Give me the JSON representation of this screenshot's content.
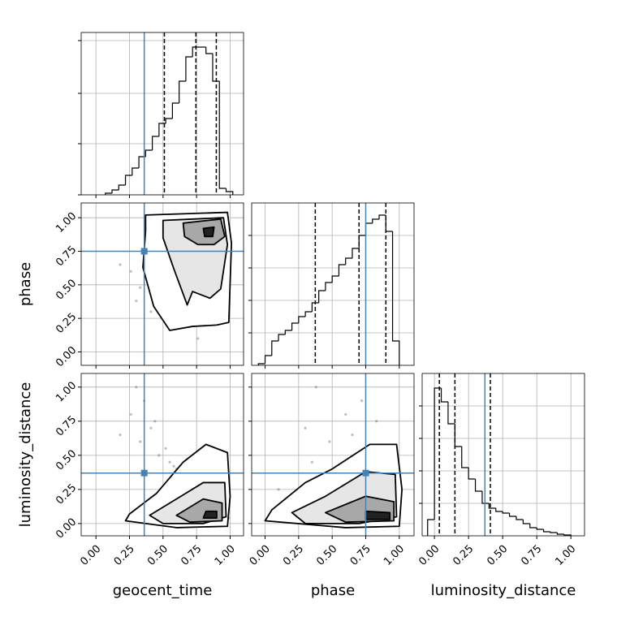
{
  "chart_data": {
    "type": "corner",
    "grid": true,
    "truth_color": "#4682b4",
    "contour_fills": [
      "#ffffff",
      "#e6e6e6",
      "#a8a8a8",
      "#222222"
    ],
    "parameters": [
      {
        "name": "geocent_time",
        "lim": [
          -0.11,
          1.1
        ],
        "ticks": [
          {
            "value": 0,
            "label": "0.00"
          },
          {
            "value": 0.25,
            "label": "0.25"
          },
          {
            "value": 0.5,
            "label": "0.50"
          },
          {
            "value": 0.75,
            "label": "0.75"
          },
          {
            "value": 1,
            "label": "1.00"
          }
        ],
        "truth": 0.36,
        "quantiles": [
          0.51,
          0.745,
          0.897
        ],
        "hist": {
          "bins": [
            0.07,
            0.12,
            0.17,
            0.22,
            0.27,
            0.32,
            0.37,
            0.42,
            0.47,
            0.52,
            0.57,
            0.62,
            0.67,
            0.72,
            0.77,
            0.82,
            0.87,
            0.92,
            0.97,
            1.02
          ],
          "counts": [
            2,
            6,
            12,
            24,
            33,
            47,
            55,
            72,
            88,
            94,
            113,
            140,
            170,
            182,
            182,
            174,
            140,
            8,
            4
          ],
          "ylim": [
            0,
            200
          ],
          "yticks": [
            0,
            63,
            125,
            190
          ]
        }
      },
      {
        "name": "phase",
        "lim": [
          -0.1,
          1.11
        ],
        "ticks": [
          {
            "value": 0,
            "label": "0.00"
          },
          {
            "value": 0.25,
            "label": "0.25"
          },
          {
            "value": 0.5,
            "label": "0.50"
          },
          {
            "value": 0.75,
            "label": "0.75"
          },
          {
            "value": 1,
            "label": "1.00"
          }
        ],
        "truth": 0.75,
        "quantiles": [
          0.374,
          0.7,
          0.9
        ],
        "hist": {
          "bins": [
            -0.05,
            0,
            0.05,
            0.1,
            0.15,
            0.2,
            0.25,
            0.3,
            0.35,
            0.4,
            0.45,
            0.5,
            0.55,
            0.6,
            0.65,
            0.7,
            0.75,
            0.8,
            0.85,
            0.9,
            0.95,
            1.0
          ],
          "counts": [
            2,
            12,
            30,
            38,
            43,
            52,
            60,
            66,
            77,
            92,
            102,
            110,
            124,
            132,
            144,
            160,
            175,
            180,
            185,
            165,
            30
          ],
          "ylim": [
            0,
            200
          ],
          "yticks": [
            40,
            80,
            120,
            160
          ]
        }
      },
      {
        "name": "luminosity_distance",
        "lim": [
          -0.09,
          1.1
        ],
        "ticks": [
          {
            "value": 0,
            "label": "0.00"
          },
          {
            "value": 0.25,
            "label": "0.25"
          },
          {
            "value": 0.5,
            "label": "0.50"
          },
          {
            "value": 0.75,
            "label": "0.75"
          },
          {
            "value": 1,
            "label": "1.00"
          }
        ],
        "truth": 0.37,
        "quantiles": [
          0.036,
          0.15,
          0.41
        ],
        "hist": {
          "bins": [
            -0.05,
            0,
            0.05,
            0.1,
            0.15,
            0.2,
            0.25,
            0.3,
            0.35,
            0.4,
            0.45,
            0.5,
            0.55,
            0.6,
            0.65,
            0.7,
            0.75,
            0.8,
            0.85,
            0.9,
            0.95,
            1.0
          ],
          "counts": [
            20,
            182,
            165,
            138,
            110,
            84,
            70,
            55,
            40,
            34,
            30,
            28,
            24,
            20,
            15,
            10,
            8,
            5,
            4,
            2,
            1
          ],
          "ylim": [
            0,
            200
          ],
          "yticks": [
            40,
            80,
            120,
            160
          ]
        }
      }
    ],
    "samples": {
      "geocent_time": [
        0.85,
        0.72,
        0.91,
        0.64,
        0.95,
        0.33,
        0.78,
        0.88,
        0.55,
        0.93,
        0.81,
        0.47,
        0.69,
        0.97,
        0.26,
        0.83,
        0.9,
        0.6,
        0.75,
        0.99,
        0.41,
        0.87,
        0.7,
        0.94,
        0.52,
        0.8,
        0.36,
        0.92,
        0.66,
        0.84,
        0.18,
        0.89,
        0.58,
        0.76,
        0.98,
        0.44,
        0.86,
        0.73,
        0.95,
        0.3
      ],
      "phase": [
        0.9,
        0.75,
        0.82,
        0.55,
        0.95,
        0.48,
        0.88,
        0.62,
        0.35,
        0.98,
        0.7,
        0.85,
        0.2,
        0.92,
        0.6,
        0.78,
        0.4,
        0.93,
        0.67,
        0.86,
        0.3,
        0.97,
        0.5,
        0.8,
        0.9,
        0.58,
        0.72,
        0.45,
        0.96,
        0.84,
        0.65,
        0.25,
        0.88,
        0.1,
        0.76,
        0.83,
        0.52,
        0.94,
        0.69,
        0.38
      ],
      "luminosity_distance": [
        0.05,
        0.2,
        0.1,
        0.35,
        0.03,
        0.6,
        0.12,
        0.08,
        0.45,
        0.06,
        0.28,
        0.5,
        0.15,
        0.02,
        0.8,
        0.18,
        0.09,
        0.4,
        0.22,
        0.04,
        0.7,
        0.11,
        0.3,
        0.07,
        0.55,
        0.14,
        0.9,
        0.05,
        0.38,
        0.16,
        0.65,
        0.1,
        0.42,
        0.25,
        0.03,
        0.75,
        0.13,
        0.33,
        0.08,
        1.0
      ]
    },
    "contours": [
      {
        "x": "geocent_time",
        "y": "phase",
        "levels": [
          [
            [
              0.37,
              1.02
            ],
            [
              0.98,
              1.04
            ],
            [
              1.01,
              0.81
            ],
            [
              0.99,
              0.22
            ],
            [
              0.9,
              0.2
            ],
            [
              0.72,
              0.19
            ],
            [
              0.55,
              0.16
            ],
            [
              0.43,
              0.34
            ],
            [
              0.35,
              0.63
            ],
            [
              0.37,
              0.9
            ]
          ],
          [
            [
              0.5,
              0.98
            ],
            [
              0.95,
              1.0
            ],
            [
              0.98,
              0.8
            ],
            [
              0.93,
              0.47
            ],
            [
              0.85,
              0.4
            ],
            [
              0.72,
              0.45
            ],
            [
              0.68,
              0.35
            ],
            [
              0.58,
              0.62
            ],
            [
              0.5,
              0.85
            ]
          ],
          [
            [
              0.65,
              0.96
            ],
            [
              0.93,
              0.99
            ],
            [
              0.96,
              0.86
            ],
            [
              0.88,
              0.8
            ],
            [
              0.76,
              0.8
            ],
            [
              0.66,
              0.86
            ]
          ],
          [
            [
              0.8,
              0.92
            ],
            [
              0.88,
              0.93
            ],
            [
              0.87,
              0.86
            ],
            [
              0.81,
              0.86
            ]
          ]
        ]
      },
      {
        "x": "geocent_time",
        "y": "luminosity_distance",
        "levels": [
          [
            [
              0.25,
              0.07
            ],
            [
              0.45,
              0.22
            ],
            [
              0.65,
              0.45
            ],
            [
              0.82,
              0.58
            ],
            [
              0.98,
              0.52
            ],
            [
              1.0,
              0.2
            ],
            [
              0.98,
              -0.02
            ],
            [
              0.6,
              -0.03
            ],
            [
              0.22,
              0.02
            ]
          ],
          [
            [
              0.4,
              0.06
            ],
            [
              0.6,
              0.18
            ],
            [
              0.8,
              0.3
            ],
            [
              0.96,
              0.3
            ],
            [
              0.97,
              0.05
            ],
            [
              0.8,
              0.0
            ],
            [
              0.5,
              0.0
            ]
          ],
          [
            [
              0.6,
              0.06
            ],
            [
              0.8,
              0.18
            ],
            [
              0.94,
              0.15
            ],
            [
              0.94,
              0.02
            ],
            [
              0.7,
              0.01
            ]
          ],
          [
            [
              0.82,
              0.09
            ],
            [
              0.9,
              0.09
            ],
            [
              0.9,
              0.04
            ],
            [
              0.8,
              0.04
            ]
          ]
        ]
      },
      {
        "x": "phase",
        "y": "luminosity_distance",
        "levels": [
          [
            [
              0.05,
              0.1
            ],
            [
              0.3,
              0.3
            ],
            [
              0.5,
              0.4
            ],
            [
              0.78,
              0.58
            ],
            [
              0.98,
              0.58
            ],
            [
              1.02,
              0.25
            ],
            [
              1.0,
              -0.02
            ],
            [
              0.6,
              -0.03
            ],
            [
              0.0,
              0.02
            ]
          ],
          [
            [
              0.2,
              0.08
            ],
            [
              0.45,
              0.2
            ],
            [
              0.75,
              0.38
            ],
            [
              0.97,
              0.36
            ],
            [
              0.98,
              0.05
            ],
            [
              0.7,
              0.0
            ],
            [
              0.3,
              0.0
            ]
          ],
          [
            [
              0.45,
              0.08
            ],
            [
              0.75,
              0.2
            ],
            [
              0.96,
              0.16
            ],
            [
              0.96,
              0.02
            ],
            [
              0.6,
              0.01
            ]
          ],
          [
            [
              0.75,
              0.09
            ],
            [
              0.93,
              0.08
            ],
            [
              0.93,
              0.03
            ],
            [
              0.75,
              0.03
            ]
          ]
        ]
      }
    ]
  }
}
